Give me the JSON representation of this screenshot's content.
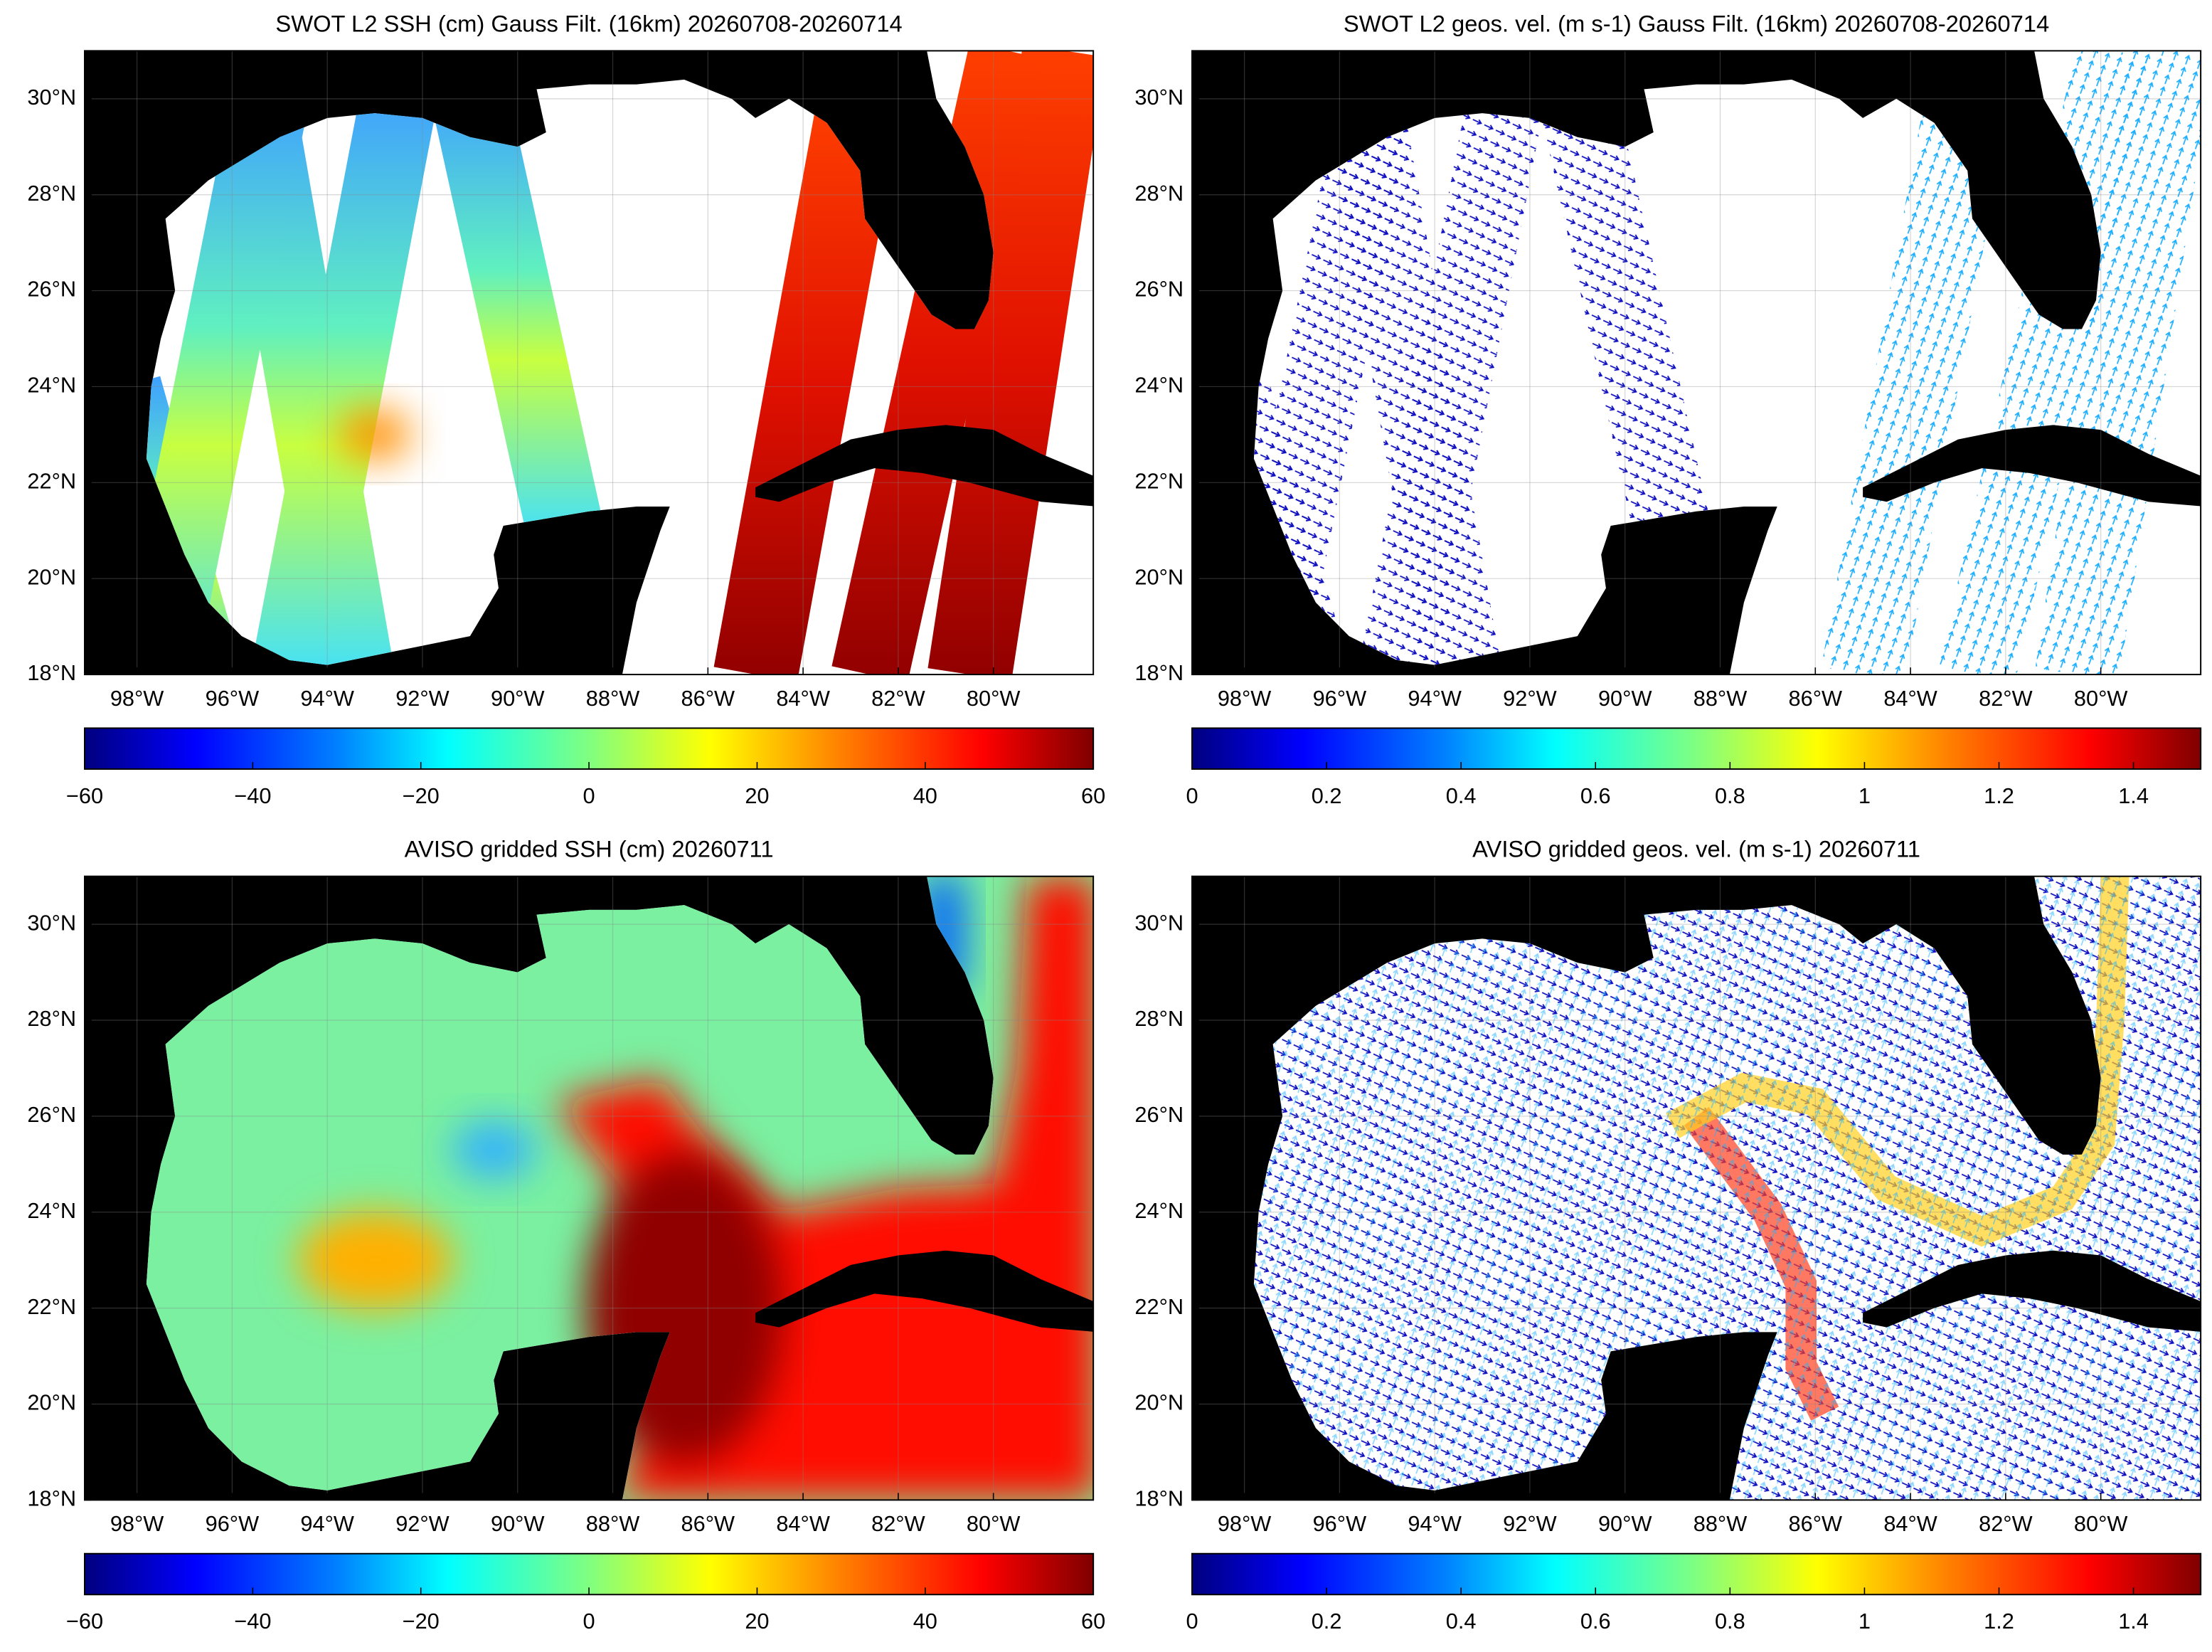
{
  "panels": [
    {
      "title": "SWOT L2 SSH (cm) Gauss Filt. (16km) 20260708-20260714",
      "xlim": [
        -99.1,
        -77.9
      ],
      "ylim": [
        18,
        31
      ],
      "xticks": [
        {
          "value": -98,
          "label": "98°W"
        },
        {
          "value": -96,
          "label": "96°W"
        },
        {
          "value": -94,
          "label": "94°W"
        },
        {
          "value": -92,
          "label": "92°W"
        },
        {
          "value": -90,
          "label": "90°W"
        },
        {
          "value": -88,
          "label": "88°W"
        },
        {
          "value": -86,
          "label": "86°W"
        },
        {
          "value": -84,
          "label": "84°W"
        },
        {
          "value": -82,
          "label": "82°W"
        },
        {
          "value": -80,
          "label": "80°W"
        }
      ],
      "yticks": [
        {
          "value": 18,
          "label": "18°N"
        },
        {
          "value": 20,
          "label": "20°N"
        },
        {
          "value": 22,
          "label": "22°N"
        },
        {
          "value": 24,
          "label": "24°N"
        },
        {
          "value": 26,
          "label": "26°N"
        },
        {
          "value": 28,
          "label": "28°N"
        },
        {
          "value": 30,
          "label": "30°N"
        }
      ],
      "colorbar": {
        "lim": [
          -60,
          60
        ],
        "ticks": [
          {
            "value": -60,
            "label": "−60"
          },
          {
            "value": -40,
            "label": "−40"
          },
          {
            "value": -20,
            "label": "−20"
          },
          0,
          20,
          40,
          60
        ]
      }
    },
    {
      "title": "SWOT L2 geos. vel. (m s-1) Gauss Filt. (16km) 20260708-20260714",
      "xlim": [
        -99.1,
        -77.9
      ],
      "ylim": [
        18,
        31
      ],
      "xticks": [
        {
          "value": -98,
          "label": "98°W"
        },
        {
          "value": -96,
          "label": "96°W"
        },
        {
          "value": -94,
          "label": "94°W"
        },
        {
          "value": -92,
          "label": "92°W"
        },
        {
          "value": -90,
          "label": "90°W"
        },
        {
          "value": -88,
          "label": "88°W"
        },
        {
          "value": -86,
          "label": "86°W"
        },
        {
          "value": -84,
          "label": "84°W"
        },
        {
          "value": -82,
          "label": "82°W"
        },
        {
          "value": -80,
          "label": "80°W"
        }
      ],
      "yticks": [
        {
          "value": 18,
          "label": "18°N"
        },
        {
          "value": 20,
          "label": "20°N"
        },
        {
          "value": 22,
          "label": "22°N"
        },
        {
          "value": 24,
          "label": "24°N"
        },
        {
          "value": 26,
          "label": "26°N"
        },
        {
          "value": 28,
          "label": "28°N"
        },
        {
          "value": 30,
          "label": "30°N"
        }
      ],
      "colorbar": {
        "lim": [
          0,
          1.5
        ],
        "ticks": [
          0,
          0.2,
          0.4,
          0.6,
          0.8,
          1,
          1.2,
          1.4
        ]
      }
    },
    {
      "title": "AVISO gridded SSH (cm) 20260711",
      "xlim": [
        -99.1,
        -77.9
      ],
      "ylim": [
        18,
        31
      ],
      "xticks": [
        {
          "value": -98,
          "label": "98°W"
        },
        {
          "value": -96,
          "label": "96°W"
        },
        {
          "value": -94,
          "label": "94°W"
        },
        {
          "value": -92,
          "label": "92°W"
        },
        {
          "value": -90,
          "label": "90°W"
        },
        {
          "value": -88,
          "label": "88°W"
        },
        {
          "value": -86,
          "label": "86°W"
        },
        {
          "value": -84,
          "label": "84°W"
        },
        {
          "value": -82,
          "label": "82°W"
        },
        {
          "value": -80,
          "label": "80°W"
        }
      ],
      "yticks": [
        {
          "value": 18,
          "label": "18°N"
        },
        {
          "value": 20,
          "label": "20°N"
        },
        {
          "value": 22,
          "label": "22°N"
        },
        {
          "value": 24,
          "label": "24°N"
        },
        {
          "value": 26,
          "label": "26°N"
        },
        {
          "value": 28,
          "label": "28°N"
        },
        {
          "value": 30,
          "label": "30°N"
        }
      ],
      "colorbar": {
        "lim": [
          -60,
          60
        ],
        "ticks": [
          {
            "value": -60,
            "label": "−60"
          },
          {
            "value": -40,
            "label": "−40"
          },
          {
            "value": -20,
            "label": "−20"
          },
          0,
          20,
          40,
          60
        ]
      }
    },
    {
      "title": "AVISO gridded geos. vel. (m s-1)  20260711",
      "xlim": [
        -99.1,
        -77.9
      ],
      "ylim": [
        18,
        31
      ],
      "xticks": [
        {
          "value": -98,
          "label": "98°W"
        },
        {
          "value": -96,
          "label": "96°W"
        },
        {
          "value": -94,
          "label": "94°W"
        },
        {
          "value": -92,
          "label": "92°W"
        },
        {
          "value": -90,
          "label": "90°W"
        },
        {
          "value": -88,
          "label": "88°W"
        },
        {
          "value": -86,
          "label": "86°W"
        },
        {
          "value": -84,
          "label": "84°W"
        },
        {
          "value": -82,
          "label": "82°W"
        },
        {
          "value": -80,
          "label": "80°W"
        }
      ],
      "yticks": [
        {
          "value": 18,
          "label": "18°N"
        },
        {
          "value": 20,
          "label": "20°N"
        },
        {
          "value": 22,
          "label": "22°N"
        },
        {
          "value": 24,
          "label": "24°N"
        },
        {
          "value": 26,
          "label": "26°N"
        },
        {
          "value": 28,
          "label": "28°N"
        },
        {
          "value": 30,
          "label": "30°N"
        }
      ],
      "colorbar": {
        "lim": [
          0,
          1.5
        ],
        "ticks": [
          0,
          0.2,
          0.4,
          0.6,
          0.8,
          1,
          1.2,
          1.4
        ]
      }
    }
  ]
}
